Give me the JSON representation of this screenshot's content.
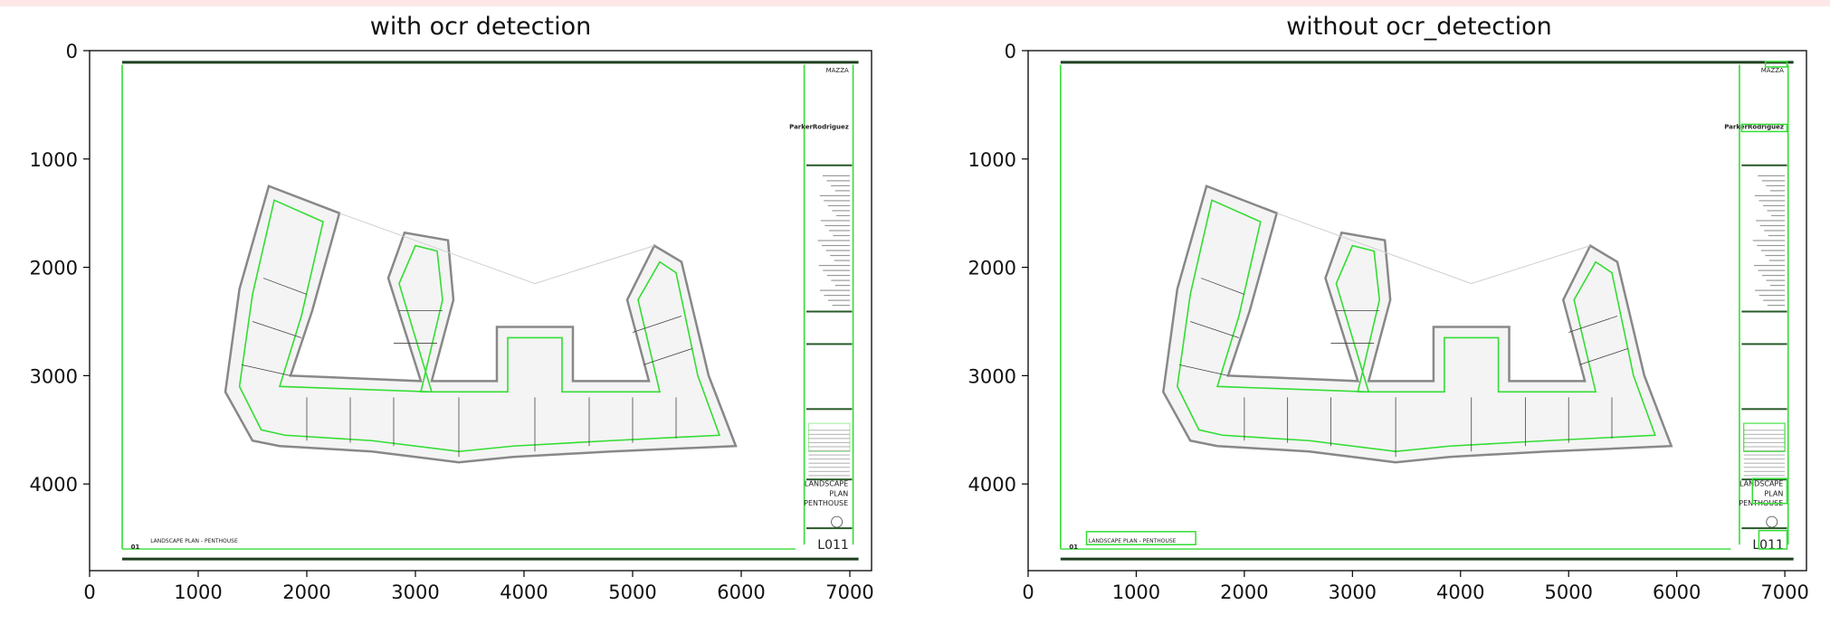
{
  "chart_data": [
    {
      "type": "image",
      "title": "with ocr detection",
      "xlim": [
        0,
        7200
      ],
      "ylim": [
        4800,
        0
      ],
      "x_ticks": [
        0,
        1000,
        2000,
        3000,
        4000,
        5000,
        6000,
        7000
      ],
      "y_ticks": [
        0,
        1000,
        2000,
        3000,
        4000
      ],
      "drawing": {
        "firm": "MAZZA",
        "architect": "ParkerRodriguez",
        "sheet_title": [
          "LANDSCAPE",
          "PLAN",
          "PENTHOUSE"
        ],
        "sheet_number": "L011",
        "view_label": "01",
        "view_title": "LANDSCAPE PLAN - PENTHOUSE"
      }
    },
    {
      "type": "image",
      "title": "without ocr_detection",
      "xlim": [
        0,
        7200
      ],
      "ylim": [
        4800,
        0
      ],
      "x_ticks": [
        0,
        1000,
        2000,
        3000,
        4000,
        5000,
        6000,
        7000
      ],
      "y_ticks": [
        0,
        1000,
        2000,
        3000,
        4000
      ],
      "drawing": {
        "firm": "MAZZA",
        "architect": "ParkerRodriguez",
        "sheet_title": [
          "LANDSCAPE",
          "PLAN",
          "PENTHOUSE"
        ],
        "sheet_number": "L011",
        "view_label": "01",
        "view_title": "LANDSCAPE PLAN - PENTHOUSE"
      }
    }
  ],
  "colors": {
    "highlight": "#33dd33",
    "linework": "#444444",
    "frame": "#1f3f1f"
  }
}
